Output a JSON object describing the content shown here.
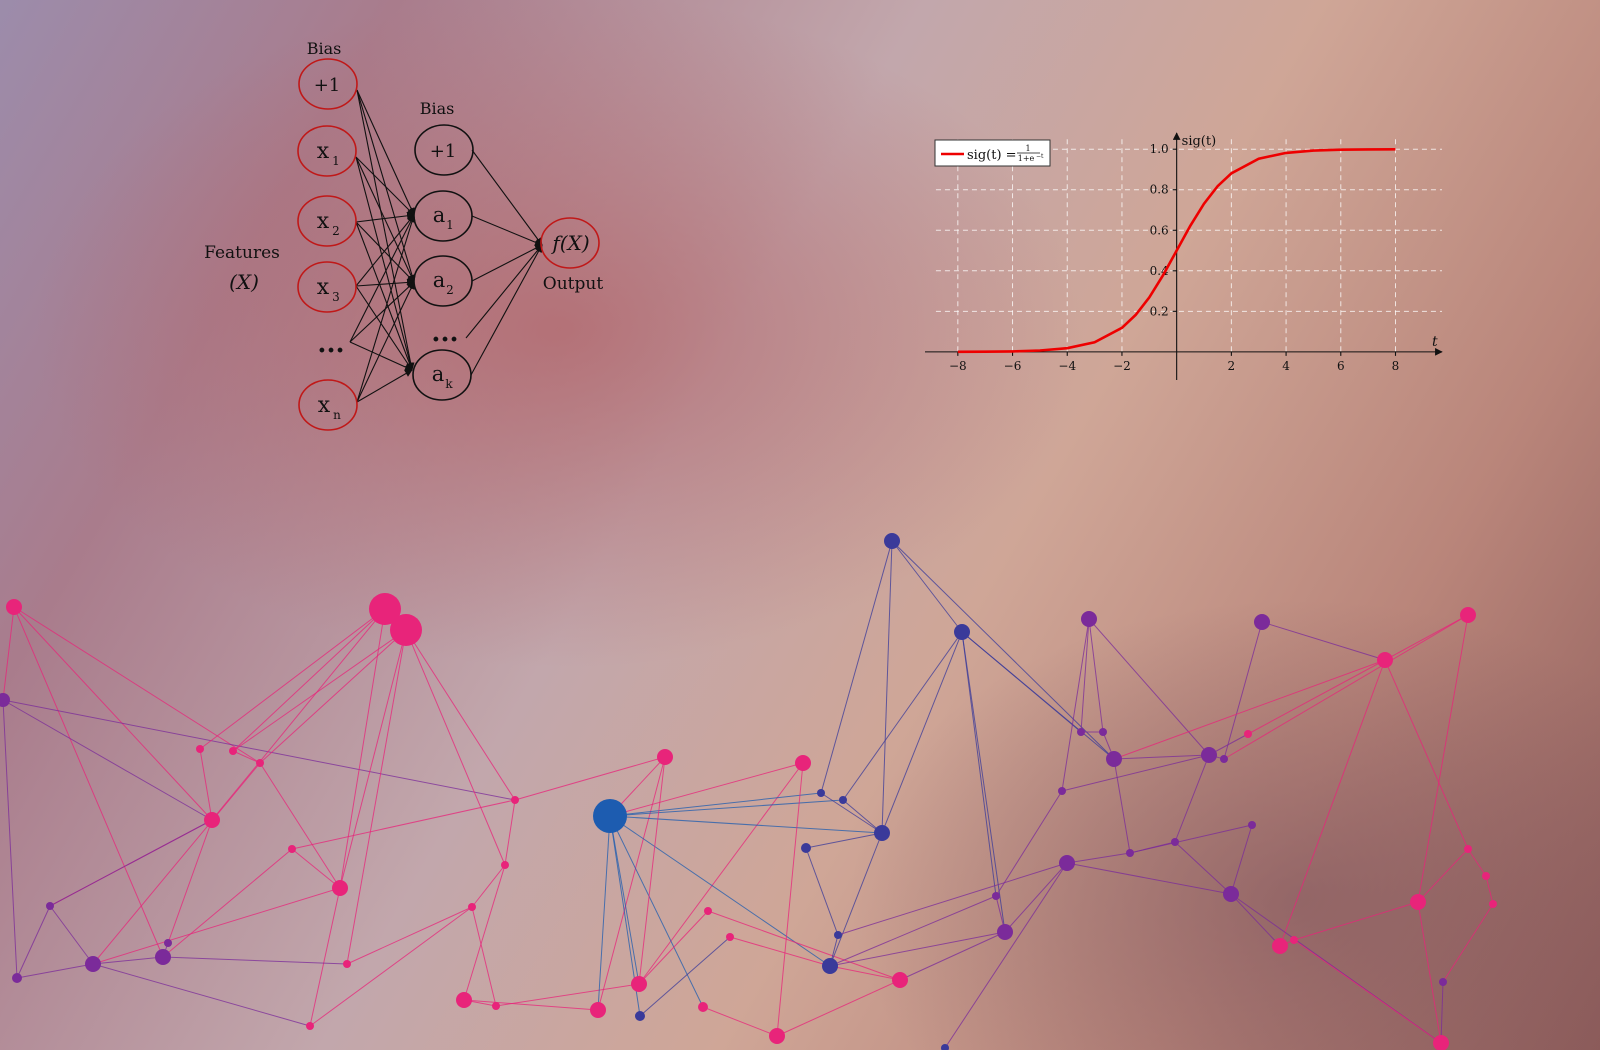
{
  "background": {
    "network_pink": "#e8247a",
    "network_purple": "#7b2b9a",
    "network_blue": "#3a3a9a",
    "hub_blue": "#1d5cb0"
  },
  "nn": {
    "bias_top_label": "Bias",
    "bias_hidden_label": "Bias",
    "features_label": "Features",
    "features_symbol": "(X)",
    "output_node_label": "f(X)",
    "output_label": "Output",
    "ellipsis": "...",
    "inputs": [
      {
        "main": "+1",
        "sub": ""
      },
      {
        "main": "x",
        "sub": "1"
      },
      {
        "main": "x",
        "sub": "2"
      },
      {
        "main": "x",
        "sub": "3"
      },
      {
        "main": "x",
        "sub": "n"
      }
    ],
    "hidden": [
      {
        "main": "+1",
        "sub": ""
      },
      {
        "main": "a",
        "sub": "1"
      },
      {
        "main": "a",
        "sub": "2"
      },
      {
        "main": "a",
        "sub": "k"
      }
    ]
  },
  "chart_data": {
    "type": "line",
    "title": "",
    "xlabel": "t",
    "ylabel": "sig(t)",
    "xlim": [
      -9.2,
      9.7
    ],
    "ylim": [
      -0.05,
      1.08
    ],
    "xticks": [
      -8,
      -6,
      -4,
      -2,
      2,
      4,
      6,
      8
    ],
    "xtick_labels": [
      "−8",
      "−6",
      "−4",
      "−2",
      "2",
      "4",
      "6",
      "8"
    ],
    "yticks": [
      0.2,
      0.4,
      0.6,
      0.8,
      1.0
    ],
    "ytick_labels": [
      "0.2",
      "0.4",
      "0.6",
      "0.8",
      "1.0"
    ],
    "grid": true,
    "legend_position": "top-left",
    "line_color": "#ee0000",
    "series": [
      {
        "name": "sig(t) = 1/(1+e^-t)",
        "legend_prefix": "sig(t) = ",
        "legend_num": "1",
        "legend_den": "1+e",
        "legend_exp": "−t",
        "x": [
          -8,
          -7,
          -6,
          -5,
          -4,
          -3,
          -2,
          -1.5,
          -1,
          -0.5,
          0,
          0.5,
          1,
          1.5,
          2,
          3,
          4,
          5,
          6,
          7,
          8
        ],
        "y": [
          0.0003,
          0.0009,
          0.0025,
          0.0067,
          0.018,
          0.047,
          0.119,
          0.182,
          0.269,
          0.378,
          0.5,
          0.622,
          0.731,
          0.818,
          0.881,
          0.953,
          0.982,
          0.993,
          0.9975,
          0.9991,
          0.9997
        ]
      }
    ]
  }
}
